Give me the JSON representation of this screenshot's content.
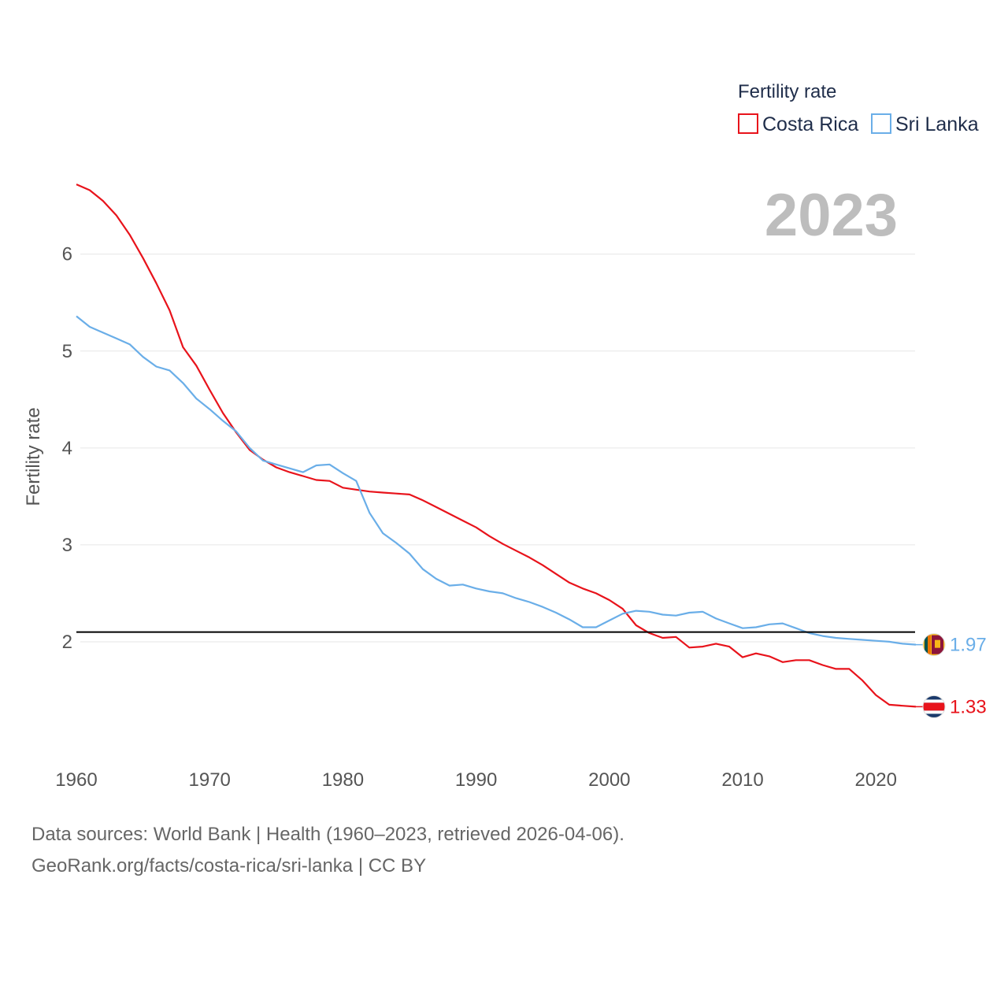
{
  "chart_data": {
    "type": "line",
    "title": "",
    "ylabel": "Fertility rate",
    "xlabel": "",
    "xlim": [
      1960,
      2023
    ],
    "ylim": [
      1.0,
      6.9
    ],
    "x_ticks": [
      1960,
      1970,
      1980,
      1990,
      2000,
      2010,
      2020
    ],
    "y_ticks": [
      2,
      3,
      4,
      5,
      6
    ],
    "reference_line": 2.1,
    "year_label": "2023",
    "legend": {
      "title": "Fertility rate",
      "placement": "top-right"
    },
    "x": [
      1960,
      1961,
      1962,
      1963,
      1964,
      1965,
      1966,
      1967,
      1968,
      1969,
      1970,
      1971,
      1972,
      1973,
      1974,
      1975,
      1976,
      1977,
      1978,
      1979,
      1980,
      1981,
      1982,
      1983,
      1984,
      1985,
      1986,
      1987,
      1988,
      1989,
      1990,
      1991,
      1992,
      1993,
      1994,
      1995,
      1996,
      1997,
      1998,
      1999,
      2000,
      2001,
      2002,
      2003,
      2004,
      2005,
      2006,
      2007,
      2008,
      2009,
      2010,
      2011,
      2012,
      2013,
      2014,
      2015,
      2016,
      2017,
      2018,
      2019,
      2020,
      2021,
      2022,
      2023
    ],
    "series": [
      {
        "name": "Costa Rica",
        "color": "#e8131b",
        "end_label": "1.33",
        "values": [
          6.72,
          6.66,
          6.55,
          6.4,
          6.2,
          5.96,
          5.7,
          5.42,
          5.04,
          4.85,
          4.6,
          4.36,
          4.16,
          3.98,
          3.88,
          3.8,
          3.75,
          3.71,
          3.67,
          3.66,
          3.59,
          3.57,
          3.55,
          3.54,
          3.53,
          3.52,
          3.46,
          3.39,
          3.32,
          3.25,
          3.18,
          3.09,
          3.01,
          2.94,
          2.87,
          2.79,
          2.7,
          2.61,
          2.55,
          2.5,
          2.43,
          2.34,
          2.17,
          2.09,
          2.04,
          2.05,
          1.94,
          1.95,
          1.98,
          1.95,
          1.84,
          1.88,
          1.85,
          1.79,
          1.81,
          1.81,
          1.76,
          1.72,
          1.72,
          1.6,
          1.45,
          1.35,
          1.34,
          1.33
        ]
      },
      {
        "name": "Sri Lanka",
        "color": "#6aaee8",
        "end_label": "1.97",
        "values": [
          5.36,
          5.25,
          5.19,
          5.13,
          5.07,
          4.94,
          4.84,
          4.8,
          4.67,
          4.51,
          4.4,
          4.28,
          4.17,
          4.0,
          3.87,
          3.83,
          3.79,
          3.75,
          3.82,
          3.83,
          3.74,
          3.66,
          3.33,
          3.12,
          3.02,
          2.91,
          2.75,
          2.65,
          2.58,
          2.59,
          2.55,
          2.52,
          2.5,
          2.45,
          2.41,
          2.36,
          2.3,
          2.23,
          2.15,
          2.15,
          2.22,
          2.29,
          2.32,
          2.31,
          2.28,
          2.27,
          2.3,
          2.31,
          2.24,
          2.19,
          2.14,
          2.15,
          2.18,
          2.19,
          2.14,
          2.09,
          2.06,
          2.04,
          2.03,
          2.02,
          2.01,
          2.0,
          1.98,
          1.97
        ]
      }
    ]
  },
  "footer": {
    "line1": "Data sources: World Bank | Health (1960–2023, retrieved 2026-04-06).",
    "line2": "GeoRank.org/facts/costa-rica/sri-lanka | CC BY"
  }
}
